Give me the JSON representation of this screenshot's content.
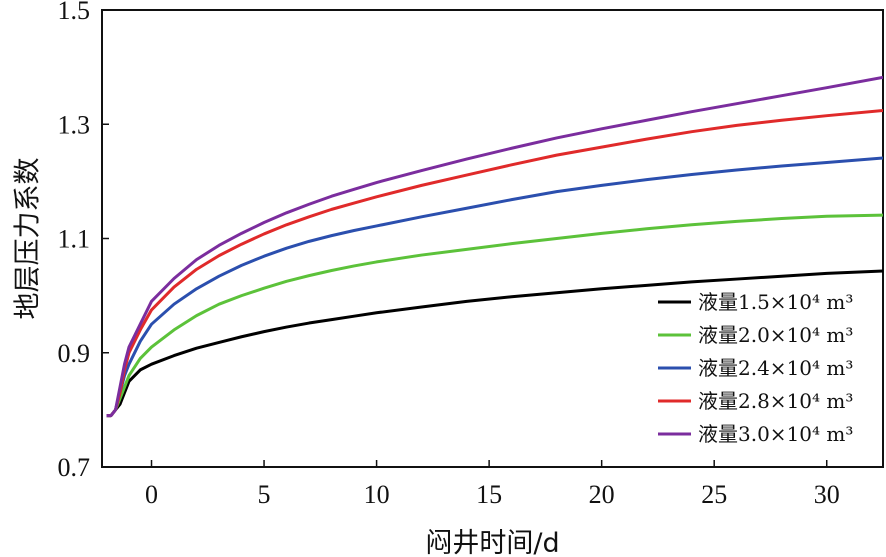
{
  "chart_data": {
    "type": "line",
    "xlabel": "闷井时间/d",
    "ylabel": "地层压力系数",
    "xlim": [
      -2.2,
      32.5
    ],
    "ylim": [
      0.7,
      1.5
    ],
    "x_ticks": [
      0,
      5,
      10,
      15,
      20,
      25,
      30
    ],
    "x_tick_labels": [
      "0",
      "5",
      "10",
      "15",
      "20",
      "25",
      "30"
    ],
    "y_ticks": [
      0.7,
      0.9,
      1.1,
      1.3,
      1.5
    ],
    "y_tick_labels": [
      "0.7",
      "0.9",
      "1.1",
      "1.3",
      "1.5"
    ],
    "grid": false,
    "legend_position": "bottom-right",
    "x": [
      -2,
      -1.8,
      -1.6,
      -1.4,
      -1.2,
      -1,
      -0.5,
      0,
      1,
      2,
      3,
      4,
      5,
      6,
      7,
      8,
      9,
      10,
      12,
      14,
      16,
      18,
      20,
      22,
      24,
      26,
      28,
      30,
      32.5
    ],
    "series": [
      {
        "name": "液量1.5×10⁴ m³",
        "color": "#000000",
        "values": [
          0.79,
          0.79,
          0.8,
          0.81,
          0.83,
          0.85,
          0.87,
          0.88,
          0.895,
          0.908,
          0.918,
          0.928,
          0.937,
          0.945,
          0.952,
          0.958,
          0.964,
          0.97,
          0.98,
          0.99,
          0.998,
          1.005,
          1.012,
          1.018,
          1.024,
          1.029,
          1.034,
          1.039,
          1.043
        ]
      },
      {
        "name": "液量2.0×10⁴ m³",
        "color": "#5cc23a",
        "values": [
          0.79,
          0.79,
          0.8,
          0.82,
          0.84,
          0.86,
          0.89,
          0.91,
          0.94,
          0.965,
          0.985,
          1.0,
          1.013,
          1.025,
          1.035,
          1.044,
          1.052,
          1.059,
          1.071,
          1.081,
          1.091,
          1.1,
          1.109,
          1.117,
          1.124,
          1.13,
          1.135,
          1.139,
          1.141
        ]
      },
      {
        "name": "液量2.4×10⁴ m³",
        "color": "#2b4fae",
        "values": [
          0.79,
          0.79,
          0.8,
          0.83,
          0.86,
          0.88,
          0.92,
          0.95,
          0.985,
          1.012,
          1.034,
          1.053,
          1.069,
          1.083,
          1.095,
          1.105,
          1.114,
          1.122,
          1.138,
          1.153,
          1.168,
          1.182,
          1.193,
          1.203,
          1.212,
          1.22,
          1.227,
          1.233,
          1.241
        ]
      },
      {
        "name": "液量2.8×10⁴ m³",
        "color": "#e02a2a",
        "values": [
          0.79,
          0.79,
          0.8,
          0.83,
          0.87,
          0.9,
          0.94,
          0.975,
          1.015,
          1.046,
          1.07,
          1.09,
          1.108,
          1.124,
          1.138,
          1.151,
          1.162,
          1.173,
          1.193,
          1.211,
          1.229,
          1.246,
          1.26,
          1.274,
          1.287,
          1.298,
          1.307,
          1.315,
          1.324
        ]
      },
      {
        "name": "液量3.0×10⁴ m³",
        "color": "#7b2d9e",
        "values": [
          0.79,
          0.79,
          0.8,
          0.84,
          0.88,
          0.91,
          0.95,
          0.99,
          1.03,
          1.063,
          1.088,
          1.109,
          1.128,
          1.145,
          1.16,
          1.174,
          1.186,
          1.198,
          1.219,
          1.239,
          1.258,
          1.276,
          1.292,
          1.307,
          1.322,
          1.336,
          1.35,
          1.364,
          1.382
        ]
      }
    ]
  }
}
